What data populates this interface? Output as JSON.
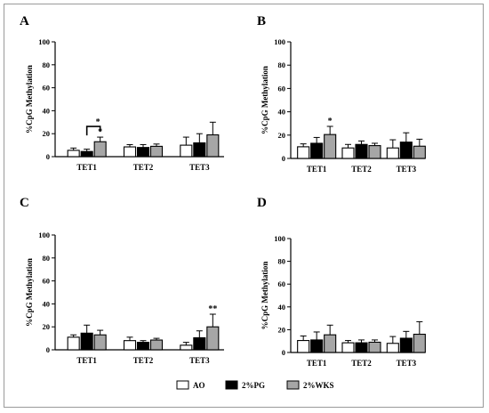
{
  "chart_data": [
    {
      "panel": "A",
      "type": "bar",
      "ylabel": "%CpG Methylation",
      "ylim": [
        0,
        100
      ],
      "yticks": [
        "0",
        "20",
        "40",
        "60",
        "80",
        "100"
      ],
      "categories": [
        "TET1",
        "TET2",
        "TET3"
      ],
      "series": [
        {
          "name": "AO",
          "values": [
            5.5,
            8.5,
            10
          ],
          "errors": [
            2,
            2,
            7
          ]
        },
        {
          "name": "2%PG",
          "values": [
            4.5,
            8,
            12
          ],
          "errors": [
            2,
            2.5,
            8
          ]
        },
        {
          "name": "2%WKS",
          "values": [
            13,
            9,
            19
          ],
          "errors": [
            4,
            2,
            11
          ]
        }
      ],
      "annotations": [
        {
          "text": "*",
          "category": 0,
          "series": 2,
          "bracket_to_series": 1
        },
        {
          "text": "*",
          "category": 0,
          "series": 2
        }
      ]
    },
    {
      "panel": "B",
      "type": "bar",
      "ylabel": "%CpG Methylation",
      "ylim": [
        0,
        100
      ],
      "yticks": [
        "0",
        "20",
        "40",
        "60",
        "80",
        "100"
      ],
      "categories": [
        "TET1",
        "TET2",
        "TET3"
      ],
      "series": [
        {
          "name": "AO",
          "values": [
            10,
            9,
            9
          ],
          "errors": [
            2.5,
            3,
            7
          ]
        },
        {
          "name": "2%PG",
          "values": [
            13,
            12,
            14
          ],
          "errors": [
            5,
            3,
            8
          ]
        },
        {
          "name": "2%WKS",
          "values": [
            20.5,
            11,
            10.5
          ],
          "errors": [
            7,
            2,
            6
          ]
        }
      ],
      "annotations": [
        {
          "text": "*",
          "category": 0,
          "series": 2
        }
      ]
    },
    {
      "panel": "C",
      "type": "bar",
      "ylabel": "%CpG Methylation",
      "ylim": [
        0,
        100
      ],
      "yticks": [
        "0",
        "20",
        "40",
        "60",
        "80",
        "100"
      ],
      "categories": [
        "TET1",
        "TET2",
        "TET3"
      ],
      "series": [
        {
          "name": "AO",
          "values": [
            11,
            8,
            4
          ],
          "errors": [
            2,
            3,
            2.5
          ]
        },
        {
          "name": "2%PG",
          "values": [
            14.5,
            6.5,
            10.5
          ],
          "errors": [
            7,
            1.5,
            6
          ]
        },
        {
          "name": "2%WKS",
          "values": [
            13,
            8.5,
            20
          ],
          "errors": [
            4,
            1.5,
            11
          ]
        }
      ],
      "annotations": [
        {
          "text": "**",
          "category": 2,
          "series": 2
        }
      ]
    },
    {
      "panel": "D",
      "type": "bar",
      "ylabel": "%CpG Methylation",
      "ylim": [
        0,
        100
      ],
      "yticks": [
        "0",
        "20",
        "40",
        "60",
        "80",
        "100"
      ],
      "categories": [
        "TET1",
        "TET2",
        "TET3"
      ],
      "series": [
        {
          "name": "AO",
          "values": [
            10.5,
            8.5,
            8
          ],
          "errors": [
            4,
            2,
            6
          ]
        },
        {
          "name": "2%PG",
          "values": [
            11,
            8.5,
            12.5
          ],
          "errors": [
            7,
            2.5,
            6
          ]
        },
        {
          "name": "2%WKS",
          "values": [
            15.5,
            9,
            16
          ],
          "errors": [
            8.5,
            2,
            11
          ]
        }
      ],
      "annotations": []
    }
  ],
  "legend": [
    {
      "name": "AO",
      "color": "#ffffff"
    },
    {
      "name": "2%PG",
      "color": "#000000"
    },
    {
      "name": "2%WKS",
      "color": "#a6a6a6"
    }
  ],
  "colors": {
    "AO": "#ffffff",
    "2%PG": "#000000",
    "2%WKS": "#a6a6a6",
    "stroke": "#000000"
  }
}
